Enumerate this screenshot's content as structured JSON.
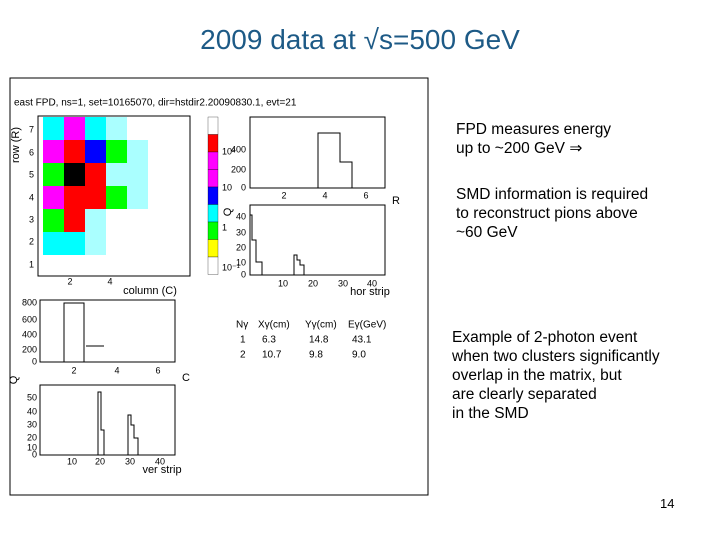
{
  "title": "2009 data at √s=500 GeV",
  "notes": [
    [
      "FPD measures energy",
      "up to ~200 GeV ⇒"
    ],
    [
      "SMD information is required",
      "to reconstruct pions above",
      "~60 GeV"
    ],
    [
      "Example of 2-photon event",
      "when two clusters significantly",
      "overlap in the matrix, but",
      "are clearly separated",
      "in the SMD"
    ]
  ],
  "figure": {
    "header": "east FPD, ns=1, set=10165070, dir=hstdir2.20090830.1, evt=21",
    "matrix": {
      "y_label": "row (R)",
      "x_label": "column (C)",
      "row_ticks": [
        "7",
        "6",
        "5",
        "4",
        "3",
        "2",
        "1"
      ],
      "col_ticks": [
        "2",
        "4"
      ],
      "scale_ticks": [
        "10²",
        "10",
        "1",
        "10⁻¹"
      ]
    },
    "energy_R": {
      "y_label": "Q",
      "x_label": "R",
      "yticks": [
        "400",
        "200",
        "0"
      ],
      "xticks": [
        "2",
        "4",
        "6"
      ]
    },
    "hor": {
      "x_label": "hor strip",
      "yticks": [
        "40",
        "30",
        "20",
        "10",
        "0"
      ],
      "xticks": [
        "10",
        "20",
        "30",
        "40"
      ]
    },
    "energy_C": {
      "y_label": "Q",
      "x_label": "C",
      "yticks": [
        "800",
        "600",
        "400",
        "200",
        "0"
      ],
      "xticks": [
        "2",
        "4",
        "6"
      ]
    },
    "ver": {
      "x_label": "ver strip",
      "yticks": [
        "50",
        "40",
        "30",
        "20",
        "10",
        "0"
      ],
      "xticks": [
        "10",
        "20",
        "30",
        "40"
      ]
    },
    "table": {
      "header": [
        "Nγ",
        "Xγ(cm)",
        "Yγ(cm)",
        "Eγ(GeV)"
      ],
      "rows": [
        [
          "1",
          "6.3",
          "14.8",
          "43.1"
        ],
        [
          "2",
          "10.7",
          "9.8",
          "9.0"
        ]
      ]
    }
  },
  "page_number": "14"
}
